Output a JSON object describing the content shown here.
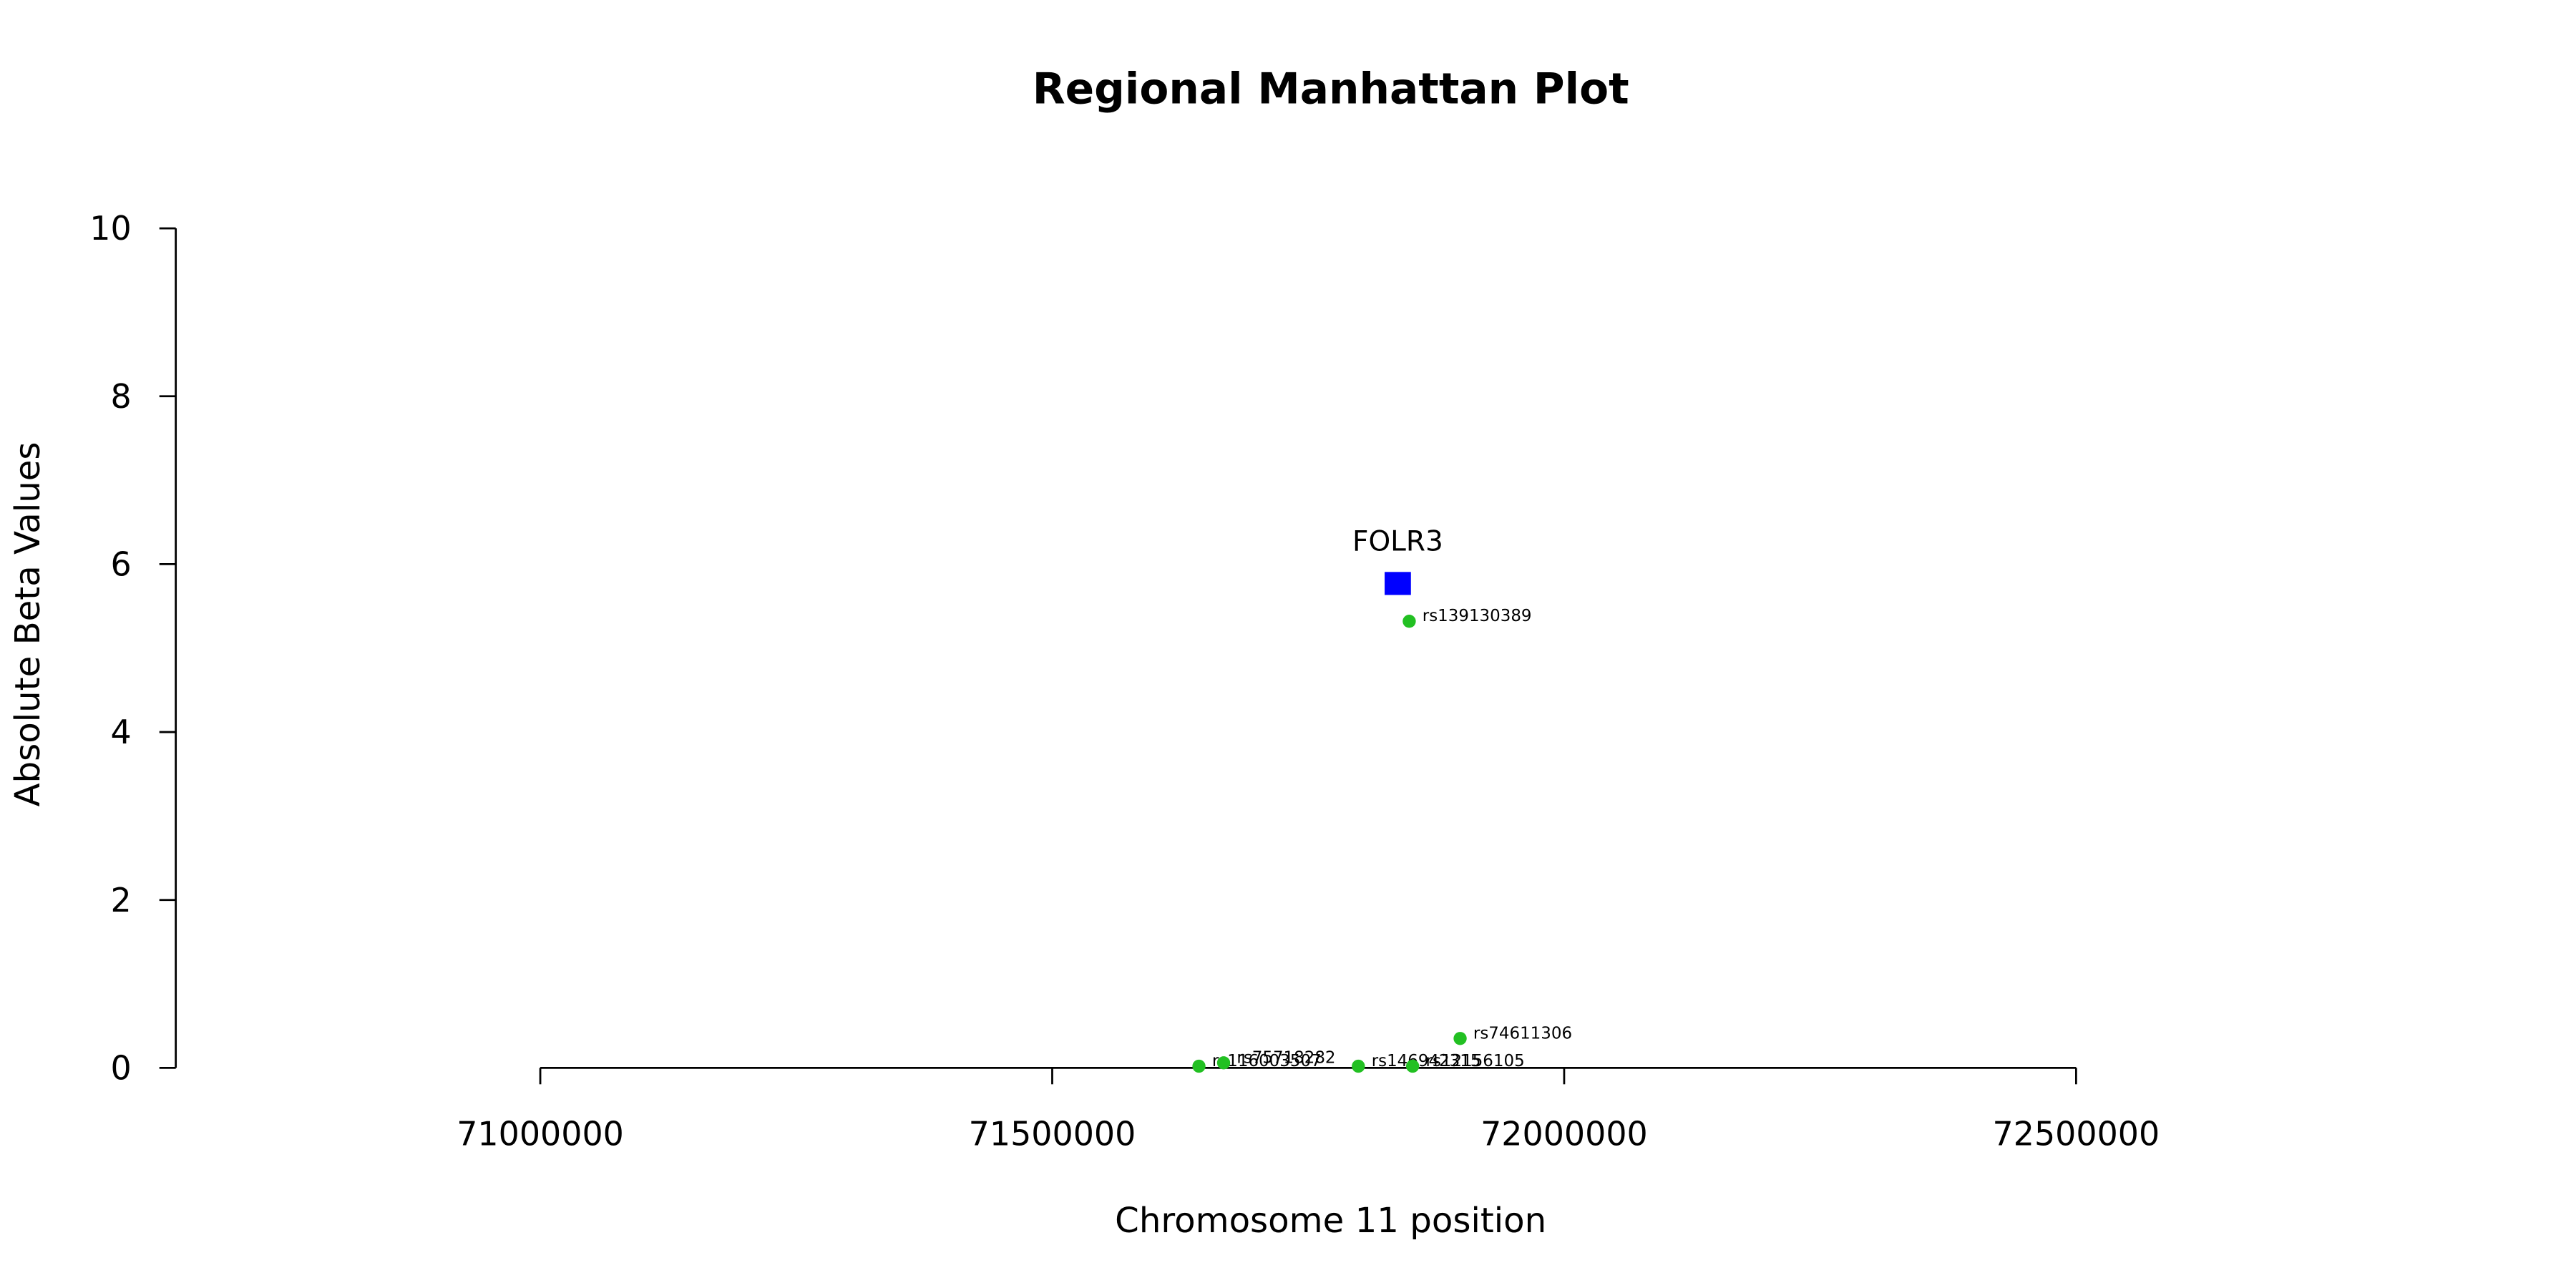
{
  "chart_data": {
    "type": "scatter",
    "title": "Regional Manhattan Plot",
    "x_label": "Chromosome 11 position",
    "y_label": "Absolute Beta Values",
    "xlim": [
      70644000,
      72900000
    ],
    "ylim": [
      0,
      10
    ],
    "xticks": [
      71000000,
      71500000,
      72000000,
      72500000
    ],
    "yticks": [
      0,
      2,
      4,
      6,
      8,
      10
    ],
    "series": [
      {
        "marker": "square",
        "color": "#0000ff",
        "label_position": "above",
        "x": [
          71837500
        ],
        "values": [
          5.77
        ],
        "labels": [
          "FOLR3"
        ]
      },
      {
        "marker": "circle",
        "color": "#22c022",
        "label_position": "right",
        "x": [
          71848700,
          71898400,
          71643300,
          71667400,
          71799000,
          71852000
        ],
        "values": [
          5.32,
          0.35,
          0.02,
          0.06,
          0.02,
          0.02
        ],
        "labels": [
          "rs139130389",
          "rs74611306",
          "rs116003507",
          "rs75718282",
          "rs146942315",
          "rs12156105"
        ]
      }
    ]
  }
}
